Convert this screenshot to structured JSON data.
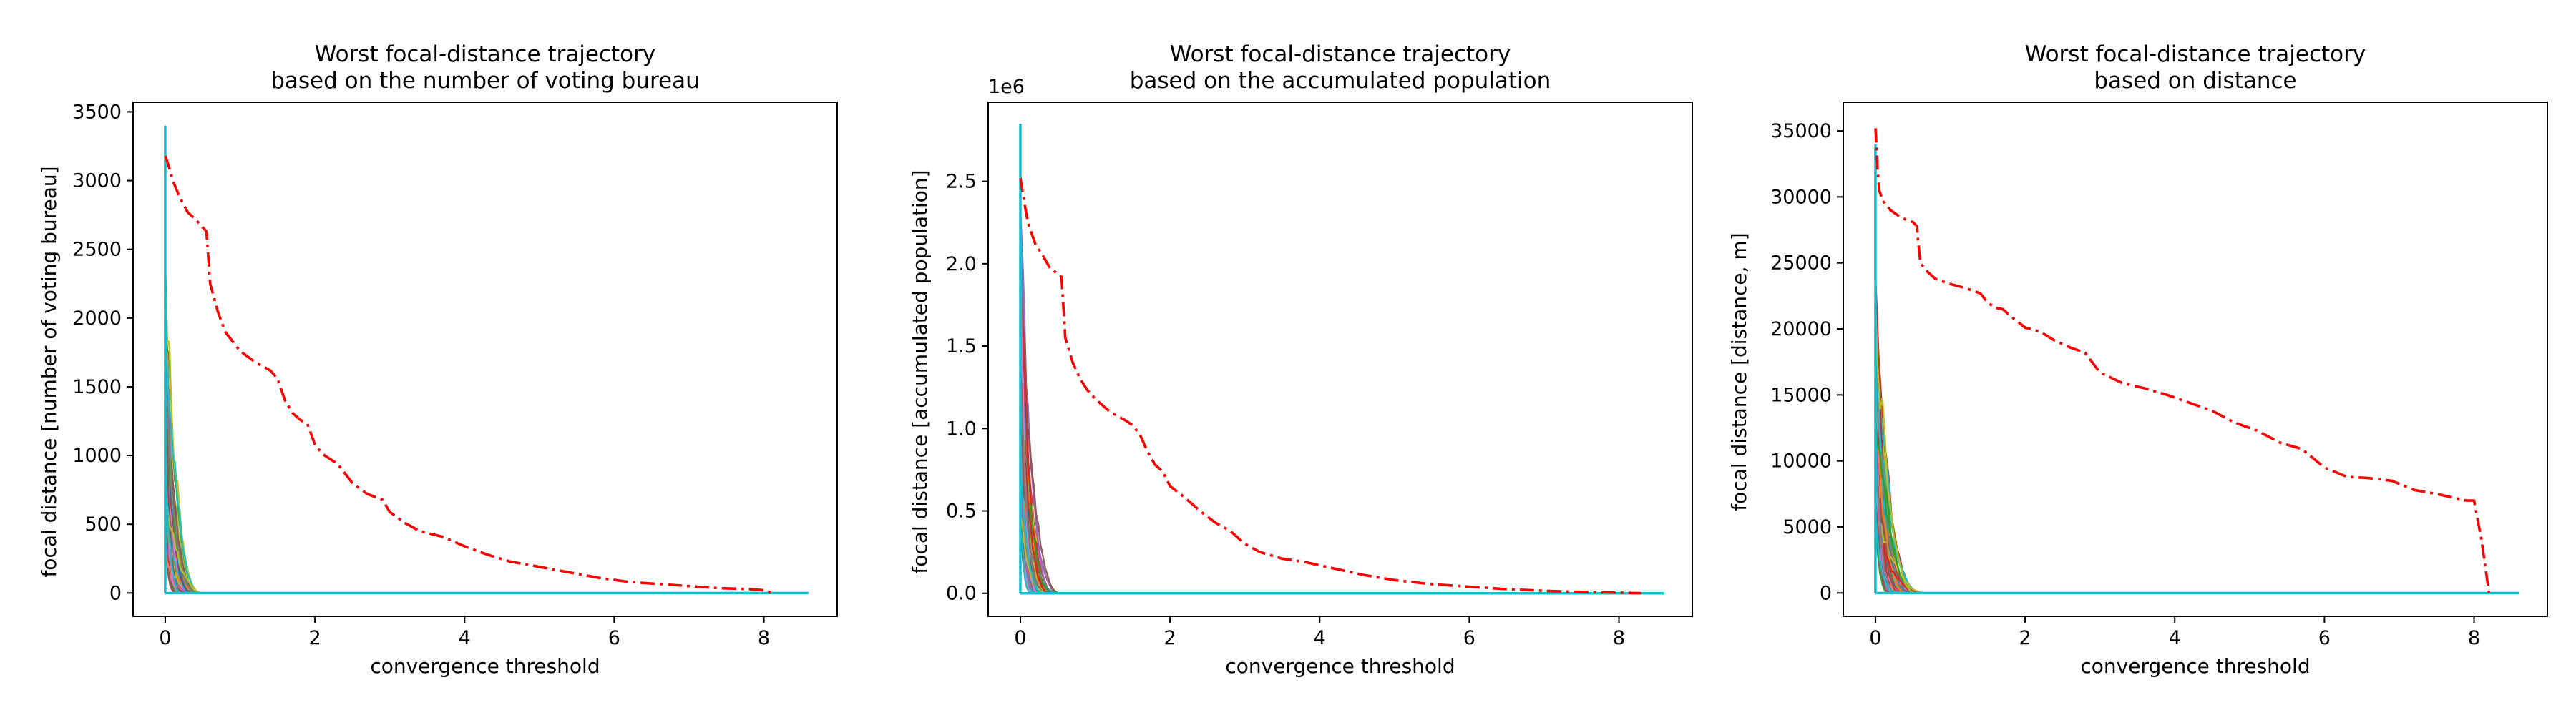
{
  "figure": {
    "background": "#ffffff",
    "worst_color": "#ff0000",
    "trajectory_colors": [
      "#1f77b4",
      "#ff7f0e",
      "#2ca02c",
      "#d62728",
      "#9467bd",
      "#8c564b",
      "#e377c2",
      "#7f7f7f",
      "#bcbd22",
      "#17becf"
    ]
  },
  "chart_data": [
    {
      "type": "line",
      "title_line1": "Worst focal-distance trajectory",
      "title_line2": "based on the number of voting bureau",
      "title": "Worst focal-distance trajectory based on the number of voting bureau",
      "xlabel": "convergence threshold",
      "ylabel": "focal distance [number of voting bureau]",
      "offset_label": "",
      "xlim": [
        -0.43,
        8.98
      ],
      "ylim": [
        -170,
        3570
      ],
      "xticks": [
        0,
        2,
        4,
        6,
        8
      ],
      "xtick_labels": [
        "0",
        "2",
        "4",
        "6",
        "8"
      ],
      "yticks": [
        0,
        500,
        1000,
        1500,
        2000,
        2500,
        3000,
        3500
      ],
      "ytick_labels": [
        "0",
        "500",
        "1000",
        "1500",
        "2000",
        "2500",
        "3000",
        "3500"
      ],
      "series": [
        {
          "role": "worst",
          "style": "dashdot",
          "color": "#ff0000",
          "x": [
            0.0,
            0.05,
            0.1,
            0.2,
            0.3,
            0.4,
            0.5,
            0.55,
            0.6,
            0.7,
            0.8,
            1.0,
            1.2,
            1.4,
            1.5,
            1.6,
            1.7,
            1.8,
            1.9,
            2.0,
            2.1,
            2.3,
            2.5,
            2.7,
            2.9,
            3.0,
            3.2,
            3.4,
            3.7,
            4.0,
            4.3,
            4.6,
            5.0,
            5.4,
            5.8,
            6.2,
            6.6,
            7.0,
            7.4,
            7.8,
            8.0,
            8.1
          ],
          "y": [
            3180,
            3100,
            3000,
            2870,
            2770,
            2720,
            2660,
            2630,
            2250,
            2050,
            1900,
            1760,
            1680,
            1620,
            1560,
            1400,
            1310,
            1260,
            1230,
            1080,
            1010,
            940,
            800,
            720,
            680,
            590,
            510,
            450,
            410,
            340,
            280,
            230,
            190,
            150,
            110,
            80,
            65,
            50,
            35,
            28,
            20,
            0
          ]
        }
      ],
      "trajectories": {
        "x_max_range": [
          0.2,
          0.55
        ],
        "y0_range": [
          300,
          2400
        ],
        "peak_value": 3400,
        "tail_end_x": 8.6
      }
    },
    {
      "type": "line",
      "title_line1": "Worst focal-distance trajectory",
      "title_line2": "based on the accumulated population",
      "title": "Worst focal-distance trajectory based on the accumulated population",
      "xlabel": "convergence threshold",
      "ylabel": "focal distance [accumulated population]",
      "offset_label": "1e6",
      "xlim": [
        -0.43,
        8.98
      ],
      "ylim": [
        -0.14,
        2.98
      ],
      "xticks": [
        0,
        2,
        4,
        6,
        8
      ],
      "xtick_labels": [
        "0",
        "2",
        "4",
        "6",
        "8"
      ],
      "yticks": [
        0.0,
        0.5,
        1.0,
        1.5,
        2.0,
        2.5
      ],
      "ytick_labels": [
        "0.0",
        "0.5",
        "1.0",
        "1.5",
        "2.0",
        "2.5"
      ],
      "series": [
        {
          "role": "worst",
          "style": "dashdot",
          "color": "#ff0000",
          "x": [
            0.0,
            0.05,
            0.1,
            0.2,
            0.3,
            0.4,
            0.5,
            0.55,
            0.6,
            0.7,
            0.8,
            0.9,
            1.0,
            1.2,
            1.4,
            1.5,
            1.6,
            1.7,
            1.8,
            1.9,
            2.0,
            2.2,
            2.4,
            2.6,
            2.8,
            3.0,
            3.2,
            3.5,
            3.8,
            4.2,
            4.6,
            5.0,
            5.5,
            6.0,
            6.5,
            7.0,
            7.5,
            8.0,
            8.3
          ],
          "y": [
            2.52,
            2.38,
            2.25,
            2.12,
            2.05,
            1.97,
            1.94,
            1.92,
            1.55,
            1.4,
            1.3,
            1.23,
            1.18,
            1.1,
            1.05,
            1.02,
            0.96,
            0.86,
            0.78,
            0.74,
            0.65,
            0.58,
            0.5,
            0.43,
            0.38,
            0.3,
            0.25,
            0.21,
            0.19,
            0.15,
            0.11,
            0.08,
            0.055,
            0.04,
            0.025,
            0.015,
            0.008,
            0.004,
            0.0
          ]
        }
      ],
      "trajectories": {
        "x_max_range": [
          0.2,
          0.55
        ],
        "y0_range": [
          0.4,
          2.4
        ],
        "peak_value": 2.85,
        "tail_end_x": 8.6
      }
    },
    {
      "type": "line",
      "title_line1": "Worst focal-distance trajectory",
      "title_line2": "based on distance",
      "title": "Worst focal-distance trajectory based on distance",
      "xlabel": "convergence threshold",
      "ylabel": "focal distance [distance, m]",
      "offset_label": "",
      "xlim": [
        -0.43,
        8.98
      ],
      "ylim": [
        -1770,
        37170
      ],
      "xticks": [
        0,
        2,
        4,
        6,
        8
      ],
      "xtick_labels": [
        "0",
        "2",
        "4",
        "6",
        "8"
      ],
      "yticks": [
        0,
        5000,
        10000,
        15000,
        20000,
        25000,
        30000,
        35000
      ],
      "ytick_labels": [
        "0",
        "5000",
        "10000",
        "15000",
        "20000",
        "25000",
        "30000",
        "35000"
      ],
      "series": [
        {
          "role": "worst",
          "style": "dashdot",
          "color": "#ff0000",
          "x": [
            0.0,
            0.03,
            0.05,
            0.1,
            0.2,
            0.3,
            0.4,
            0.5,
            0.55,
            0.6,
            0.7,
            0.8,
            1.0,
            1.2,
            1.4,
            1.5,
            1.6,
            1.7,
            1.8,
            2.0,
            2.2,
            2.4,
            2.6,
            2.8,
            3.0,
            3.3,
            3.6,
            3.9,
            4.2,
            4.5,
            4.8,
            5.1,
            5.4,
            5.7,
            6.0,
            6.3,
            6.6,
            6.9,
            7.2,
            7.5,
            7.9,
            8.0,
            8.1,
            8.2
          ],
          "y": [
            35200,
            32000,
            30500,
            29700,
            29000,
            28600,
            28300,
            28100,
            27800,
            25000,
            24300,
            23800,
            23400,
            23100,
            22700,
            22000,
            21600,
            21500,
            21000,
            20100,
            19800,
            19100,
            18600,
            18200,
            16700,
            15900,
            15500,
            15000,
            14400,
            13800,
            12900,
            12300,
            11400,
            10900,
            9500,
            8800,
            8700,
            8500,
            7800,
            7500,
            7000,
            7000,
            4000,
            0
          ]
        }
      ],
      "trajectories": {
        "x_max_range": [
          0.2,
          0.7
        ],
        "y0_range": [
          5000,
          24000
        ],
        "peak_value": 34000,
        "tail_end_x": 8.6
      }
    }
  ]
}
